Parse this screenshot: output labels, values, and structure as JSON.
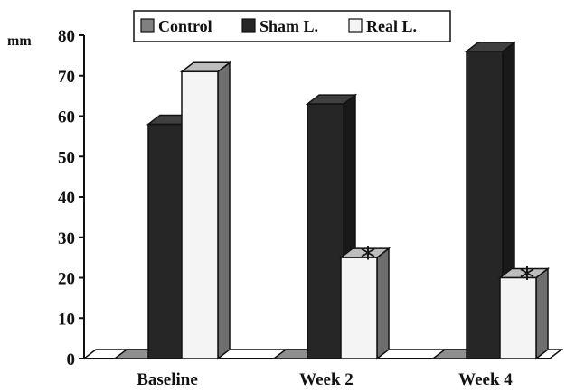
{
  "chart_data": {
    "type": "bar",
    "categories": [
      "Baseline",
      "Week 2",
      "Week 4"
    ],
    "series": [
      {
        "name": "Control",
        "values": [
          0,
          0,
          0
        ],
        "color": "#808080"
      },
      {
        "name": "Sham L.",
        "values": [
          58,
          63,
          76
        ],
        "color": "#262626"
      },
      {
        "name": "Real L.",
        "values": [
          71,
          25,
          20
        ],
        "color": "#f4f4f4"
      }
    ],
    "ylabel": "mm",
    "ylim": [
      0,
      80
    ],
    "yticks": [
      "0",
      "10",
      "20",
      "30",
      "40",
      "50",
      "60",
      "70",
      "80"
    ],
    "annotations": [
      {
        "text": "*",
        "category": "Week 2",
        "series": "Real L."
      },
      {
        "text": "*",
        "category": "Week 4",
        "series": "Real L."
      }
    ],
    "legend_position": "top",
    "grid": false,
    "style": "3d"
  }
}
